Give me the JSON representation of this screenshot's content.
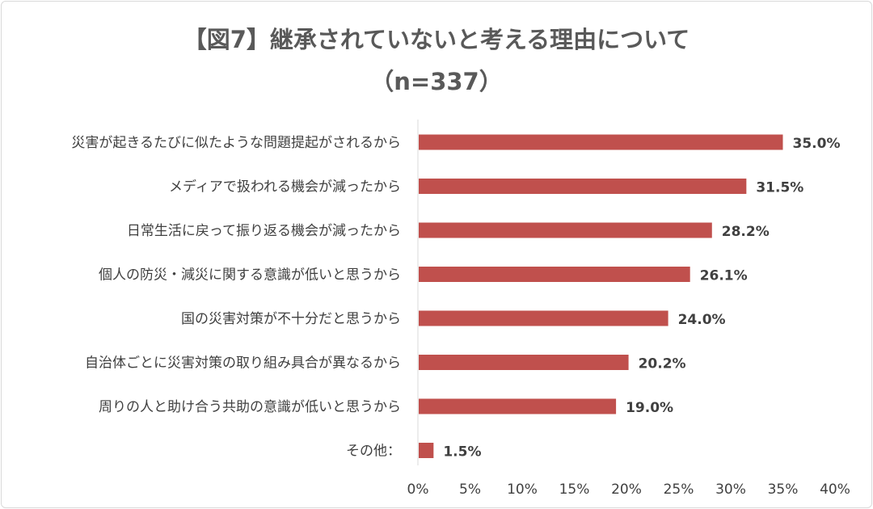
{
  "chart_data": {
    "type": "bar",
    "orientation": "horizontal",
    "title": "【図7】継承されていないと考える理由について",
    "subtitle": "（n=337）",
    "categories": [
      "災害が起きるたびに似たような問題提起がされるから",
      "メディアで扱われる機会が減ったから",
      "日常生活に戻って振り返る機会が減ったから",
      "個人の防災・減災に関する意識が低いと思うから",
      "国の災害対策が不十分だと思うから",
      "自治体ごとに災害対策の取り組み具合が異なるから",
      "周りの人と助け合う共助の意識が低いと思うから",
      "その他："
    ],
    "values": [
      35.0,
      31.5,
      28.2,
      26.1,
      24.0,
      20.2,
      19.0,
      1.5
    ],
    "data_labels": [
      "35.0%",
      "31.5%",
      "28.2%",
      "26.1%",
      "24.0%",
      "20.2%",
      "19.0%",
      "1.5%"
    ],
    "x_ticks": [
      0,
      5,
      10,
      15,
      20,
      25,
      30,
      35,
      40
    ],
    "x_tick_labels": [
      "0%",
      "5%",
      "10%",
      "15%",
      "20%",
      "25%",
      "30%",
      "35%",
      "40%"
    ],
    "xlim": [
      0,
      40
    ],
    "xlabel": "",
    "ylabel": "",
    "grid": false,
    "legend": "none",
    "bar_color": "#c0504d"
  }
}
